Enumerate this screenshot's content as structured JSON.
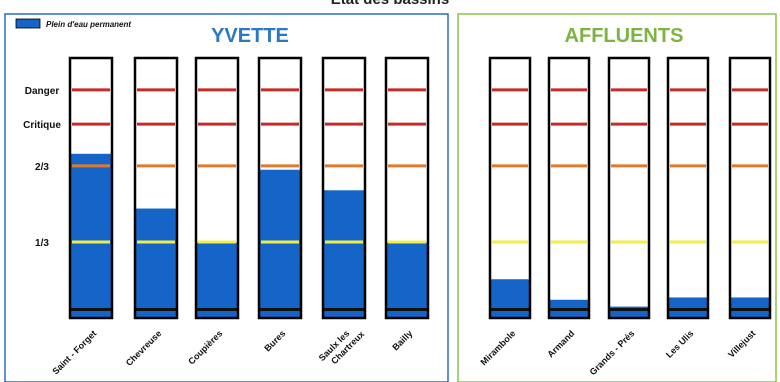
{
  "page_title": "Etat des bassins",
  "legend_label": "Plein d'eau permanent",
  "colors": {
    "water": "#1565c8",
    "danger": "#c42b2b",
    "critique": "#c42b2b",
    "two_thirds": "#e07a2a",
    "one_third": "#f0ee4a",
    "yvette_frame": "#2a6fb5",
    "affluents_frame": "#8bc34a",
    "yvette_title": "#2a78c6",
    "affluents_title": "#7cb342"
  },
  "chart_data": [
    {
      "type": "bar",
      "title": "YVETTE",
      "levels": [
        {
          "label": "Danger",
          "value": 100
        },
        {
          "label": "Critique",
          "value": 85
        },
        {
          "label": "2/3",
          "value": 66.7
        },
        {
          "label": "1/3",
          "value": 33.3
        }
      ],
      "ylim": [
        0,
        114
      ],
      "categories": [
        "Saint - Forget",
        "Chevreuse",
        "Coupières",
        "Bures",
        "Saulx les Chartreux",
        "Bailly"
      ],
      "values": [
        72,
        48,
        33,
        65,
        56,
        33
      ]
    },
    {
      "type": "bar",
      "title": "AFFLUENTS",
      "levels": [
        {
          "label": "Danger",
          "value": 100
        },
        {
          "label": "Critique",
          "value": 85
        },
        {
          "label": "2/3",
          "value": 66.7
        },
        {
          "label": "1/3",
          "value": 33.3
        }
      ],
      "ylim": [
        0,
        114
      ],
      "categories": [
        "Mirambole",
        "Armand",
        "Grands - Prés",
        "Les Ulis",
        "Villejust"
      ],
      "values": [
        17,
        8,
        5,
        9,
        9
      ]
    }
  ]
}
